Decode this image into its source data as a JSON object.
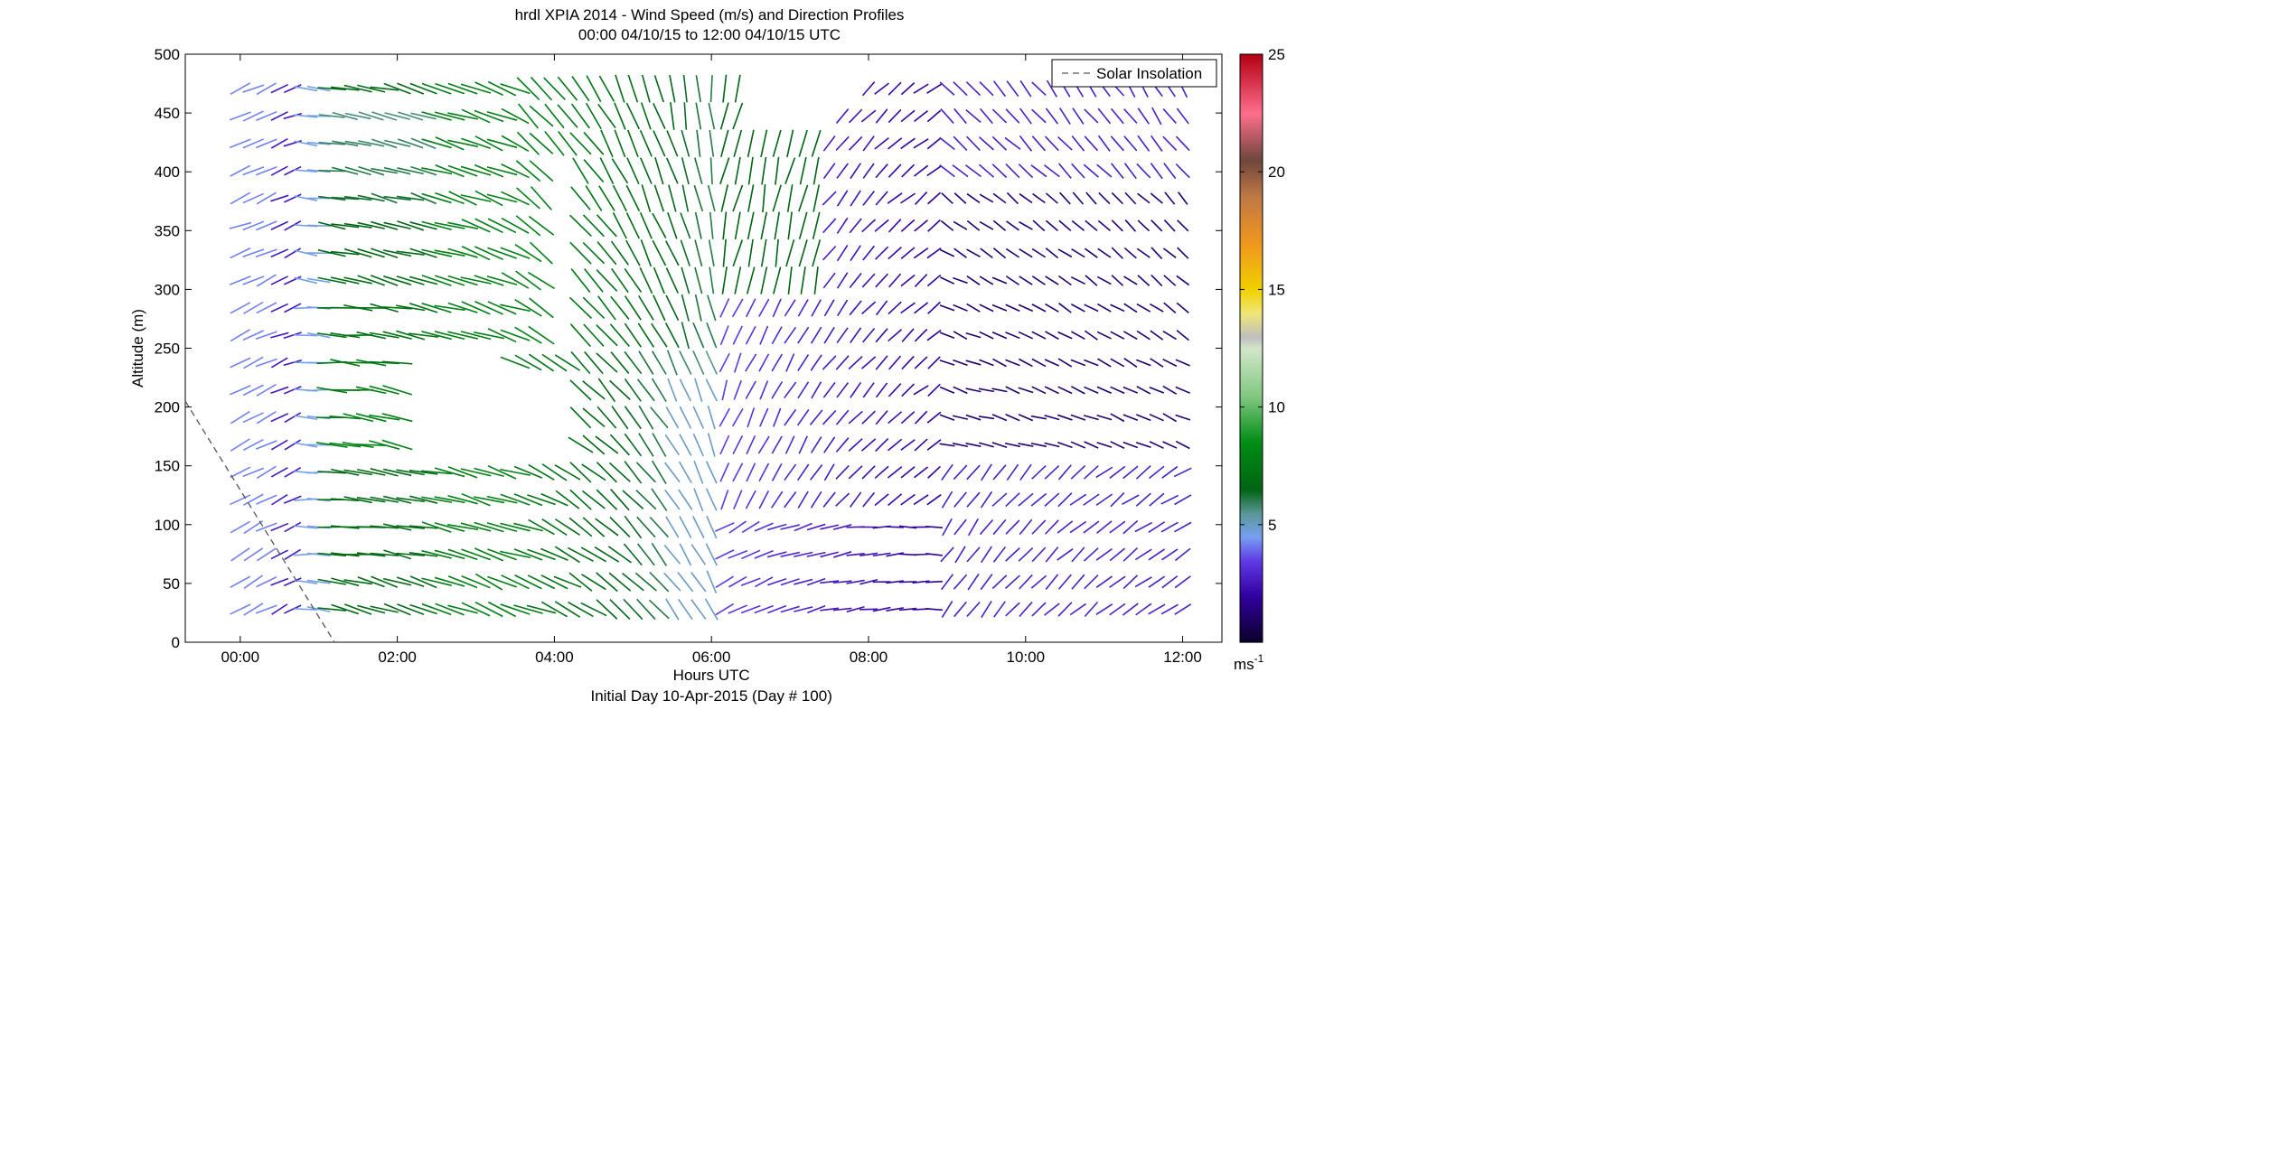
{
  "chart_data": {
    "type": "scatter",
    "title": "hrdl XPIA 2014 - Wind Speed (m/s) and Direction Profiles",
    "subtitle": "00:00 04/10/15 to 12:00 04/10/15  UTC",
    "xlabel": "Hours UTC",
    "xlabel2": "Initial Day 10-Apr-2015 (Day # 100)",
    "ylabel": "Altitude (m)",
    "xlim_hours": [
      -0.7,
      12.5
    ],
    "ylim": [
      0,
      500
    ],
    "x_ticks": [
      {
        "value": 0,
        "label": "00:00"
      },
      {
        "value": 2,
        "label": "02:00"
      },
      {
        "value": 4,
        "label": "04:00"
      },
      {
        "value": 6,
        "label": "06:00"
      },
      {
        "value": 8,
        "label": "08:00"
      },
      {
        "value": 10,
        "label": "10:00"
      },
      {
        "value": 12,
        "label": "12:00"
      }
    ],
    "y_ticks": [
      0,
      50,
      100,
      150,
      200,
      250,
      300,
      350,
      400,
      450,
      500
    ],
    "legend": {
      "entries": [
        "Solar Insolation"
      ],
      "placement": "top-right"
    },
    "solar_insolation": {
      "x": [
        -0.7,
        1.2
      ],
      "y": [
        205,
        0
      ],
      "style": "dashed",
      "color": "#555555"
    },
    "colorbar": {
      "min": 0,
      "max": 25,
      "ticks": [
        5,
        10,
        15,
        20,
        25
      ],
      "unit_label": "ms",
      "unit_exponent": "-1"
    },
    "grid": false
  }
}
